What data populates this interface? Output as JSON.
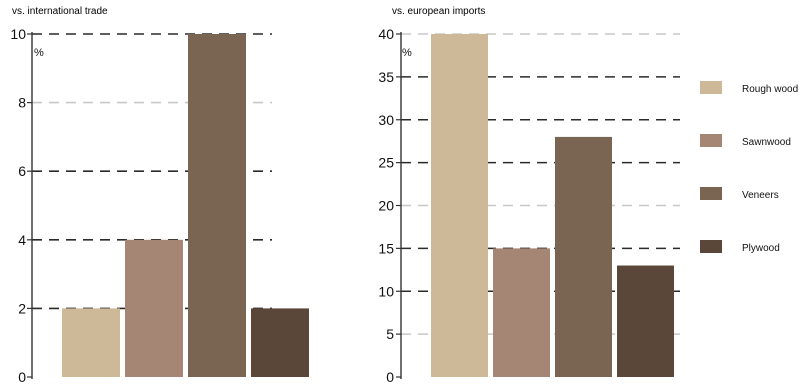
{
  "chart_data": [
    {
      "type": "bar",
      "title": "vs. international trade",
      "unit_label": "%",
      "categories": [
        "Rough wood",
        "Sawnwood",
        "Veneers",
        "Plywood"
      ],
      "values": [
        2,
        4,
        10,
        2
      ],
      "ylim": [
        0,
        10
      ],
      "yticks": [
        0,
        2,
        4,
        6,
        8,
        10
      ],
      "xlabel": "",
      "ylabel": "",
      "grid": true
    },
    {
      "type": "bar",
      "title": "vs. european imports",
      "unit_label": "%",
      "categories": [
        "Rough wood",
        "Sawnwood",
        "Veneers",
        "Plywood"
      ],
      "values": [
        40,
        15,
        28,
        13
      ],
      "ylim": [
        0,
        40
      ],
      "yticks": [
        0,
        5,
        10,
        15,
        20,
        25,
        30,
        35,
        40
      ],
      "xlabel": "",
      "ylabel": "",
      "grid": true
    }
  ],
  "legend": {
    "placement": "right",
    "items": [
      {
        "label": "Rough wood",
        "color": "#cdb998"
      },
      {
        "label": "Sawnwood",
        "color": "#a58574"
      },
      {
        "label": "Veneers",
        "color": "#7a6552"
      },
      {
        "label": "Plywood",
        "color": "#5b463a"
      }
    ]
  },
  "colors": {
    "major_grid": "#2a2a2a",
    "minor_grid": "#c8c8c8",
    "axis": "#333333"
  }
}
